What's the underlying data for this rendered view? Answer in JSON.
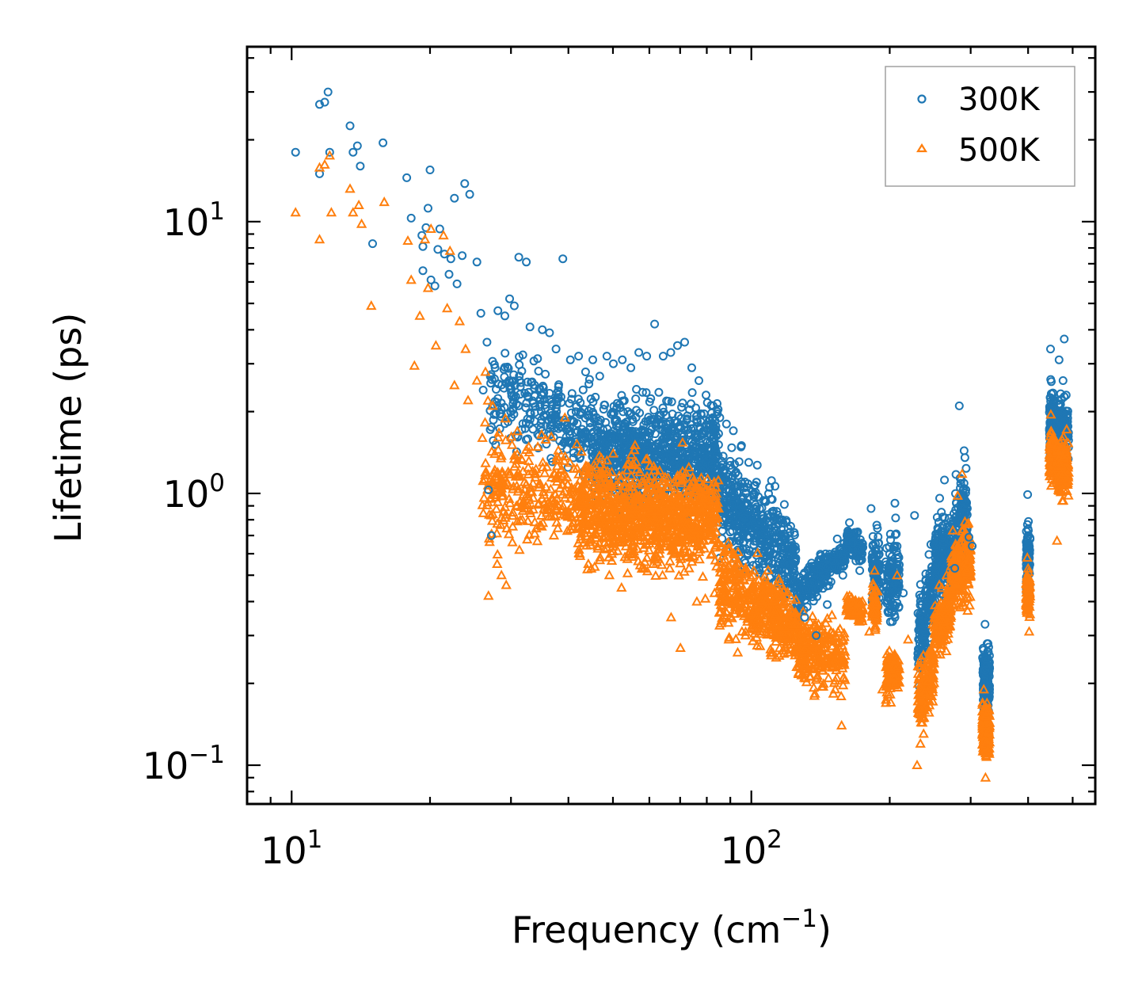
{
  "chart_data": {
    "type": "scatter",
    "title": "",
    "xlabel": "Frequency (cm",
    "xlabel_exp": "−1",
    "xlabel_close": ")",
    "ylabel": "Lifetime (ps)",
    "xscale": "log",
    "yscale": "log",
    "xlim": [
      8,
      560
    ],
    "ylim": [
      0.072,
      44
    ],
    "x_ticks": [
      {
        "value": 10,
        "base": "10",
        "exp": "1"
      },
      {
        "value": 100,
        "base": "10",
        "exp": "2"
      }
    ],
    "y_ticks": [
      {
        "value": 0.1,
        "base": "10",
        "exp": "−1"
      },
      {
        "value": 1,
        "base": "10",
        "exp": "0"
      },
      {
        "value": 10,
        "base": "10",
        "exp": "1"
      }
    ],
    "legend_position": "top-right",
    "series": [
      {
        "name": "300K",
        "marker": "circle",
        "color": "#1f77b4",
        "points": [
          [
            10.2,
            18
          ],
          [
            11.5,
            27
          ],
          [
            11.8,
            27.5
          ],
          [
            12,
            30
          ],
          [
            11.5,
            15
          ],
          [
            12.1,
            18
          ],
          [
            13.4,
            22.5
          ],
          [
            13.6,
            18
          ],
          [
            13.9,
            19
          ],
          [
            14.1,
            16
          ],
          [
            15,
            8.3
          ],
          [
            15.8,
            19.5
          ],
          [
            17.8,
            14.5
          ],
          [
            18.2,
            10.3
          ],
          [
            19.2,
            8.9
          ],
          [
            19.3,
            8.1
          ],
          [
            19.3,
            6.6
          ],
          [
            19.6,
            9.5
          ],
          [
            19.8,
            11.2
          ],
          [
            20,
            15.5
          ],
          [
            20.1,
            6.1
          ],
          [
            20.5,
            5.8
          ],
          [
            20.8,
            7.9
          ],
          [
            21,
            9.4
          ],
          [
            21.5,
            7.6
          ],
          [
            22,
            6.4
          ],
          [
            22.2,
            7.3
          ],
          [
            22.6,
            12.2
          ],
          [
            22.9,
            5.9
          ],
          [
            23.5,
            7.5
          ],
          [
            23.8,
            13.8
          ],
          [
            24.4,
            12.6
          ],
          [
            25.3,
            7.1
          ],
          [
            25.8,
            4.6
          ],
          [
            26.1,
            2.4
          ],
          [
            26.6,
            3.6
          ],
          [
            26.8,
            1.03
          ],
          [
            27.2,
            0.7
          ],
          [
            28.1,
            4.7
          ],
          [
            29.1,
            4.5
          ],
          [
            29.8,
            5.2
          ],
          [
            30.5,
            4.9
          ],
          [
            31.2,
            7.4
          ],
          [
            32.4,
            7.1
          ],
          [
            33,
            4.1
          ],
          [
            35.1,
            4
          ],
          [
            36.4,
            3.9
          ],
          [
            37.6,
            3.4
          ],
          [
            38.9,
            7.3
          ],
          [
            40.4,
            3.1
          ],
          [
            42.1,
            3.2
          ],
          [
            43.6,
            2.8
          ],
          [
            45.2,
            3.1
          ],
          [
            46.8,
            2.7
          ],
          [
            48.5,
            3.2
          ],
          [
            50.1,
            3
          ],
          [
            52.4,
            3.1
          ],
          [
            54.7,
            2.9
          ],
          [
            56.9,
            3.3
          ],
          [
            59.2,
            3.2
          ],
          [
            61.6,
            4.2
          ],
          [
            64.3,
            3.2
          ],
          [
            66.8,
            3.3
          ],
          [
            69.1,
            3.5
          ],
          [
            71.6,
            3.6
          ],
          [
            74.2,
            2.9
          ],
          [
            76.9,
            2.6
          ],
          [
            79.7,
            2.3
          ],
          [
            82.6,
            2.1
          ],
          [
            85.4,
            1.9
          ],
          [
            88.3,
            1.8
          ],
          [
            91.4,
            1.7
          ],
          [
            95.2,
            1.5
          ],
          [
            98.7,
            1.3
          ],
          [
            102.6,
            1.1
          ],
          [
            107.2,
            0.94
          ],
          [
            112.1,
            0.82
          ],
          [
            117.9,
            0.71
          ],
          [
            123.4,
            0.55
          ],
          [
            130.6,
            0.35
          ],
          [
            138.4,
            0.3
          ],
          [
            146.3,
            0.39
          ],
          [
            153.8,
            0.68
          ],
          [
            158.2,
            0.5
          ],
          [
            163.5,
            0.78
          ],
          [
            172.1,
            0.52
          ],
          [
            182.2,
            0.88
          ],
          [
            191.4,
            0.47
          ],
          [
            200.6,
            0.52
          ],
          [
            205.3,
            0.92
          ],
          [
            214.1,
            0.43
          ],
          [
            226.5,
            0.83
          ],
          [
            241.6,
            0.44
          ],
          [
            246.3,
            0.41
          ],
          [
            256.8,
            0.96
          ],
          [
            263.1,
            1.12
          ],
          [
            269.2,
            0.81
          ],
          [
            277.1,
            0.53
          ],
          [
            283.4,
            2.1
          ],
          [
            290.2,
            1.09
          ],
          [
            297.5,
            0.69
          ],
          [
            302.3,
            0.64
          ],
          [
            322.4,
            0.33
          ],
          [
            327.3,
            0.28
          ],
          [
            399.1,
            0.99
          ],
          [
            402.5,
            0.58
          ],
          [
            447.6,
            3.4
          ],
          [
            451.9,
            2.1
          ],
          [
            467.2,
            3.1
          ],
          [
            476.5,
            2.6
          ],
          [
            479.3,
            3.7
          ],
          [
            484.1,
            2.3
          ]
        ]
      },
      {
        "name": "500K",
        "marker": "triangle",
        "color": "#ff7f0e",
        "points": [
          [
            10.2,
            10.8
          ],
          [
            11.5,
            8.6
          ],
          [
            11.5,
            15.8
          ],
          [
            11.8,
            16.2
          ],
          [
            12.2,
            10.8
          ],
          [
            12.1,
            17.5
          ],
          [
            13.4,
            13.2
          ],
          [
            13.6,
            10.8
          ],
          [
            14,
            11.5
          ],
          [
            14.2,
            9.8
          ],
          [
            14.9,
            4.9
          ],
          [
            15.9,
            11.8
          ],
          [
            17.9,
            8.5
          ],
          [
            18.2,
            6.1
          ],
          [
            18.5,
            2.95
          ],
          [
            19,
            4.5
          ],
          [
            19.5,
            8.6
          ],
          [
            19.8,
            5.7
          ],
          [
            20.1,
            9.4
          ],
          [
            20.6,
            3.5
          ],
          [
            21.4,
            8.9
          ],
          [
            21.8,
            4.8
          ],
          [
            22.1,
            7.8
          ],
          [
            22.6,
            2.5
          ],
          [
            23.2,
            4.3
          ],
          [
            23.9,
            3.4
          ],
          [
            24.2,
            2.2
          ],
          [
            25.3,
            2.6
          ],
          [
            26,
            1.6
          ],
          [
            26.4,
            2.8
          ],
          [
            26.8,
            0.42
          ],
          [
            27.4,
            2.1
          ],
          [
            28,
            0.55
          ],
          [
            28.6,
            0.5
          ],
          [
            29.3,
            0.46
          ],
          [
            30.3,
            0.85
          ],
          [
            31.3,
            0.62
          ],
          [
            33.1,
            1.05
          ],
          [
            35.2,
            1.3
          ],
          [
            37.2,
            0.7
          ],
          [
            39.3,
            1.9
          ],
          [
            41.3,
            0.84
          ],
          [
            42.3,
            0.6
          ],
          [
            44.2,
            0.55
          ],
          [
            47.2,
            0.75
          ],
          [
            49.1,
            0.5
          ],
          [
            52.2,
            0.45
          ],
          [
            55.1,
            0.7
          ],
          [
            58.3,
            0.63
          ],
          [
            61.2,
            0.55
          ],
          [
            64.1,
            0.5
          ],
          [
            66.9,
            0.35
          ],
          [
            70.1,
            0.27
          ],
          [
            73.2,
            0.53
          ],
          [
            76.1,
            0.4
          ],
          [
            79.4,
            0.41
          ],
          [
            83.2,
            0.43
          ],
          [
            86.1,
            0.34
          ],
          [
            89.3,
            0.29
          ],
          [
            93.4,
            0.26
          ],
          [
            97.1,
            0.3
          ],
          [
            101.2,
            0.37
          ],
          [
            106.4,
            0.43
          ],
          [
            112.3,
            0.41
          ],
          [
            118.1,
            0.44
          ],
          [
            124.2,
            0.33
          ],
          [
            130.4,
            0.21
          ],
          [
            137.1,
            0.18
          ],
          [
            145.4,
            0.24
          ],
          [
            152.2,
            0.19
          ],
          [
            157.2,
            0.14
          ],
          [
            163.6,
            0.42
          ],
          [
            171.4,
            0.4
          ],
          [
            180.6,
            0.31
          ],
          [
            185.4,
            0.52
          ],
          [
            192.8,
            0.19
          ],
          [
            201.1,
            0.17
          ],
          [
            207.6,
            0.5
          ],
          [
            219.3,
            0.29
          ],
          [
            229.4,
            0.1
          ],
          [
            233.2,
            0.12
          ],
          [
            248.2,
            0.33
          ],
          [
            256.4,
            0.46
          ],
          [
            266.1,
            0.5
          ],
          [
            274.3,
            0.73
          ],
          [
            281.2,
            0.98
          ],
          [
            287.5,
            1.18
          ],
          [
            295.4,
            0.37
          ],
          [
            320.3,
            0.19
          ],
          [
            323.1,
            0.09
          ],
          [
            329.2,
            0.11
          ],
          [
            398.5,
            0.58
          ],
          [
            402.1,
            0.31
          ],
          [
            448.2,
            1.95
          ],
          [
            453.1,
            1.18
          ],
          [
            462.4,
            0.67
          ],
          [
            471.3,
            1.45
          ],
          [
            476.8,
            0.94
          ],
          [
            485.2,
            1.72
          ]
        ]
      }
    ]
  }
}
